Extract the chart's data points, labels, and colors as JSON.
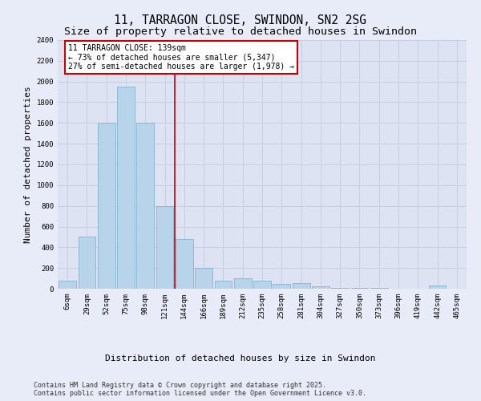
{
  "title1": "11, TARRAGON CLOSE, SWINDON, SN2 2SG",
  "title2": "Size of property relative to detached houses in Swindon",
  "xlabel": "Distribution of detached houses by size in Swindon",
  "ylabel": "Number of detached properties",
  "categories": [
    "6sqm",
    "29sqm",
    "52sqm",
    "75sqm",
    "98sqm",
    "121sqm",
    "144sqm",
    "166sqm",
    "189sqm",
    "212sqm",
    "235sqm",
    "258sqm",
    "281sqm",
    "304sqm",
    "327sqm",
    "350sqm",
    "373sqm",
    "396sqm",
    "419sqm",
    "442sqm",
    "465sqm"
  ],
  "values": [
    80,
    500,
    1600,
    1950,
    1600,
    800,
    480,
    200,
    75,
    100,
    80,
    50,
    55,
    20,
    10,
    5,
    5,
    3,
    0,
    30,
    0
  ],
  "bar_color": "#b8d4ea",
  "bar_edge_color": "#7aabc8",
  "grid_color": "#c4cce0",
  "bg_color": "#e8ecf8",
  "plot_bg_color": "#dde3f3",
  "vline_index": 5,
  "vline_color": "#cc0000",
  "annotation_line1": "11 TARRAGON CLOSE: 139sqm",
  "annotation_line2": "← 73% of detached houses are smaller (5,347)",
  "annotation_line3": "27% of semi-detached houses are larger (1,978) →",
  "annotation_box_color": "#ffffff",
  "annotation_box_edge": "#cc0000",
  "footnote": "Contains HM Land Registry data © Crown copyright and database right 2025.\nContains public sector information licensed under the Open Government Licence v3.0.",
  "ylim_max": 2400,
  "yticks": [
    0,
    200,
    400,
    600,
    800,
    1000,
    1200,
    1400,
    1600,
    1800,
    2000,
    2200,
    2400
  ],
  "title_fontsize": 10.5,
  "subtitle_fontsize": 9.5,
  "tick_fontsize": 6.5,
  "ylabel_fontsize": 8,
  "xlabel_fontsize": 8,
  "annotation_fontsize": 7,
  "footnote_fontsize": 6
}
